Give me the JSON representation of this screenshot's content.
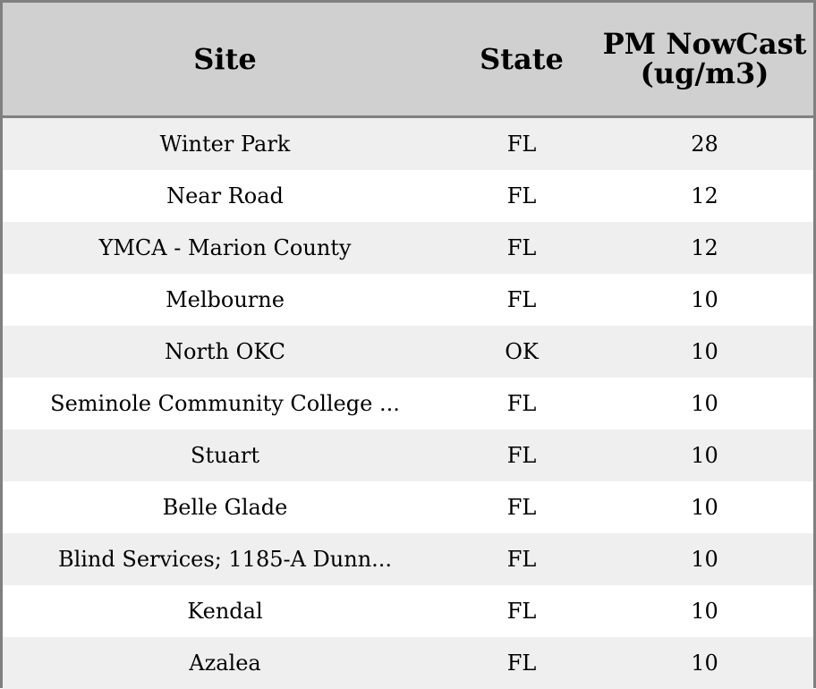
{
  "columns": [
    "Site",
    "State",
    "PM NowCast (ug/m3)"
  ],
  "rows": [
    [
      "Winter Park",
      "FL",
      "28"
    ],
    [
      "Near Road",
      "FL",
      "12"
    ],
    [
      "YMCA - Marion County",
      "FL",
      "12"
    ],
    [
      "Melbourne",
      "FL",
      "10"
    ],
    [
      "North OKC",
      "OK",
      "10"
    ],
    [
      "Seminole Community College ...",
      "FL",
      "10"
    ],
    [
      "Stuart",
      "FL",
      "10"
    ],
    [
      "Belle Glade",
      "FL",
      "10"
    ],
    [
      "Blind Services; 1185-A Dunn...",
      "FL",
      "10"
    ],
    [
      "Kendal",
      "FL",
      "10"
    ],
    [
      "Azalea",
      "FL",
      "10"
    ]
  ],
  "colors": {
    "header_bg": "#d0d0d0",
    "stripe": "#efefef",
    "border": "#808080"
  }
}
